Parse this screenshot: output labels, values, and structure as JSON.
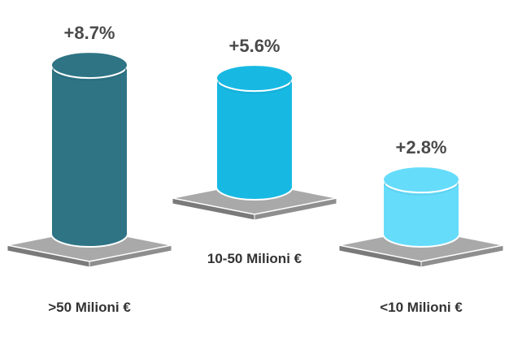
{
  "chart_data": {
    "type": "bar",
    "categories": [
      ">50 Milioni €",
      "10-50 Milioni €",
      "<10 Milioni €"
    ],
    "values": [
      8.7,
      5.6,
      2.8
    ],
    "value_labels": [
      "+8.7%",
      "+5.6%",
      "+2.8%"
    ],
    "colors": [
      "#2e7485",
      "#17b9e3",
      "#66dcfb"
    ],
    "title": "",
    "xlabel": "",
    "ylabel": ""
  }
}
